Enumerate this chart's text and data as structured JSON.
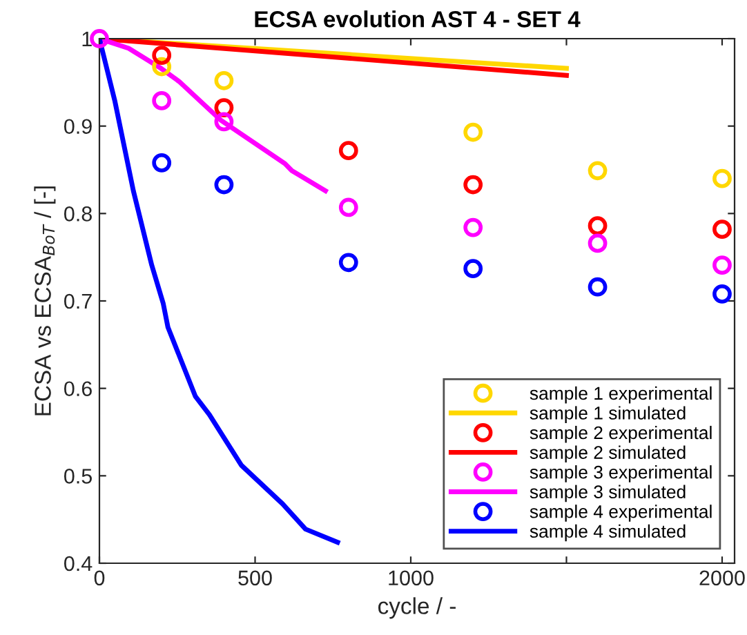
{
  "chart_data": {
    "type": "line",
    "title": "ECSA evolution AST 4 - SET 4",
    "xlabel": "cycle / -",
    "ylabel": "ECSA vs ECSA$_{BoT}$ / [-]",
    "xlim": [
      0,
      2040
    ],
    "xticks": [
      0,
      500,
      1000,
      {
        "value": 1500,
        "label": null
      },
      2000
    ],
    "ylim": [
      0.4,
      1
    ],
    "yticks": [
      0.4,
      0.5,
      0.6,
      0.7,
      0.8,
      0.9,
      1
    ],
    "grid": false,
    "legend": "bottom right",
    "series": [
      {
        "name": "sample 1 experimental",
        "type": "scatter",
        "marker": "circle",
        "color": "#ffd700",
        "x": [
          200,
          400,
          800,
          1200,
          1600,
          2000
        ],
        "values": [
          0.968,
          0.952,
          null,
          0.893,
          0.849,
          0.84
        ]
      },
      {
        "name": "sample 1 simulated",
        "color": "#ffd700",
        "x": [
          0,
          1500
        ],
        "values": [
          1.0,
          0.966
        ]
      },
      {
        "name": "sample 2 experimental",
        "type": "scatter",
        "marker": "circle",
        "color": "#ff0000",
        "x": [
          200,
          400,
          800,
          1200,
          1600,
          2000
        ],
        "values": [
          0.981,
          0.921,
          0.872,
          0.833,
          0.786,
          0.782
        ]
      },
      {
        "name": "sample 2 simulated",
        "color": "#ff0000",
        "x": [
          0,
          1500
        ],
        "values": [
          1.0,
          0.958
        ]
      },
      {
        "name": "sample 3 experimental",
        "type": "scatter",
        "marker": "circle",
        "color": "#ff00ff",
        "x": [
          0,
          200,
          400,
          800,
          1200,
          1600,
          2000
        ],
        "values": [
          1.0,
          0.929,
          0.905,
          0.807,
          0.784,
          0.766,
          0.741
        ]
      },
      {
        "name": "sample 3 simulated",
        "color": "#ff00ff",
        "x": [
          0,
          94,
          198,
          256,
          389,
          596,
          618,
          726
        ],
        "values": [
          1.0,
          0.989,
          0.966,
          0.951,
          0.907,
          0.857,
          0.849,
          0.826
        ]
      },
      {
        "name": "sample 4 experimental",
        "type": "scatter",
        "marker": "circle",
        "color": "#0000ff",
        "x": [
          200,
          400,
          800,
          1200,
          1600,
          2000
        ],
        "values": [
          0.858,
          0.833,
          0.744,
          0.737,
          0.716,
          0.708
        ]
      },
      {
        "name": "sample 4 simulated",
        "color": "#0000ff",
        "x": [
          0,
          50,
          109,
          168,
          205,
          220,
          308,
          353,
          456,
          588,
          662,
          765
        ],
        "values": [
          1.0,
          0.928,
          0.826,
          0.741,
          0.697,
          0.67,
          0.591,
          0.57,
          0.512,
          0.468,
          0.439,
          0.424
        ]
      }
    ]
  }
}
